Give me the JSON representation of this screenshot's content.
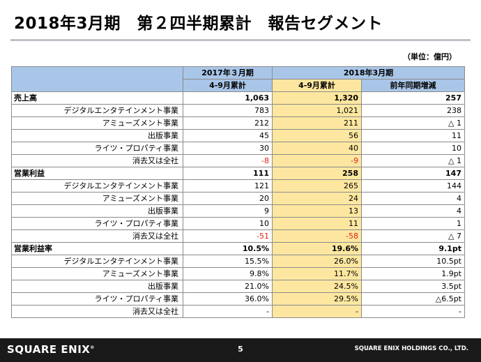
{
  "title": "2018年3月期　第２四半期累計　報告セグメント",
  "unit": "（単位：億円）",
  "header": {
    "col_2017": "2017年３月期",
    "col_2018": "2018年3月期",
    "sub_2017": "4-9月累計",
    "sub_2018": "4-9月累計",
    "sub_yoy": "前年同期増減"
  },
  "rows": [
    {
      "type": "section",
      "label": "売上高",
      "v2017": "1,063",
      "v2018": "1,320",
      "diff": "257"
    },
    {
      "type": "item",
      "label": "デジタルエンタテインメント事業",
      "v2017": "783",
      "v2018": "1,021",
      "diff": "238"
    },
    {
      "type": "item",
      "label": "アミューズメント事業",
      "v2017": "212",
      "v2018": "211",
      "diff": "△ 1"
    },
    {
      "type": "item",
      "label": "出版事業",
      "v2017": "45",
      "v2018": "56",
      "diff": "11"
    },
    {
      "type": "item",
      "label": "ライツ・プロパティ事業",
      "v2017": "30",
      "v2018": "40",
      "diff": "10"
    },
    {
      "type": "item",
      "label": "消去又は全社",
      "v2017": "-8",
      "v2018": "-9",
      "diff": "△ 1",
      "neg": true
    },
    {
      "type": "section",
      "label": "営業利益",
      "v2017": "111",
      "v2018": "258",
      "diff": "147"
    },
    {
      "type": "item",
      "label": "デジタルエンタテインメント事業",
      "v2017": "121",
      "v2018": "265",
      "diff": "144"
    },
    {
      "type": "item",
      "label": "アミューズメント事業",
      "v2017": "20",
      "v2018": "24",
      "diff": "4"
    },
    {
      "type": "item",
      "label": "出版事業",
      "v2017": "9",
      "v2018": "13",
      "diff": "4"
    },
    {
      "type": "item",
      "label": "ライツ・プロパティ事業",
      "v2017": "10",
      "v2018": "11",
      "diff": "1"
    },
    {
      "type": "item",
      "label": "消去又は全社",
      "v2017": "-51",
      "v2018": "-58",
      "diff": "△ 7",
      "neg": true
    },
    {
      "type": "section",
      "label": "営業利益率",
      "v2017": "10.5%",
      "v2018": "19.6%",
      "diff": "9.1pt"
    },
    {
      "type": "item",
      "label": "デジタルエンタテインメント事業",
      "v2017": "15.5%",
      "v2018": "26.0%",
      "diff": "10.5pt"
    },
    {
      "type": "item",
      "label": "アミューズメント事業",
      "v2017": "9.8%",
      "v2018": "11.7%",
      "diff": "1.9pt"
    },
    {
      "type": "item",
      "label": "出版事業",
      "v2017": "21.0%",
      "v2018": "24.5%",
      "diff": "3.5pt"
    },
    {
      "type": "item",
      "label": "ライツ・プロパティ事業",
      "v2017": "36.0%",
      "v2018": "29.5%",
      "diff": "△6.5pt"
    },
    {
      "type": "item",
      "label": "消去又は全社",
      "v2017": "-",
      "v2018": "-",
      "diff": "-"
    }
  ],
  "footer": {
    "logo": "SQUARE ENIX",
    "logo_mark": "®",
    "page": "5",
    "company": "SQUARE ENIX HOLDINGS CO., LTD."
  },
  "colors": {
    "header_blue": "#a9c6e8",
    "highlight_yellow": "#fde7a0",
    "negative_red": "#e0201c",
    "footer_bg": "#1a1a1a"
  }
}
